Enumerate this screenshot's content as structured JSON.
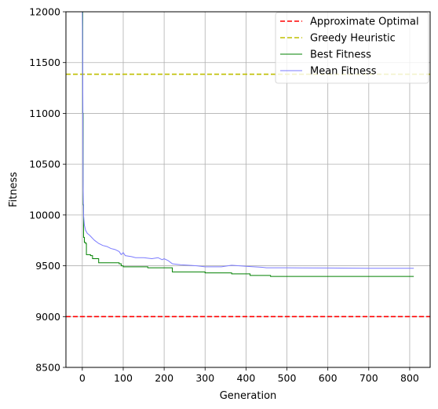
{
  "chart_data": {
    "type": "line",
    "title": "",
    "xlabel": "Generation",
    "ylabel": "Fitness",
    "xlim": [
      -40,
      850
    ],
    "ylim": [
      8500,
      12000
    ],
    "xticks": [
      0,
      100,
      200,
      300,
      400,
      500,
      600,
      700,
      800
    ],
    "yticks": [
      8500,
      9000,
      9500,
      10000,
      10500,
      11000,
      11500,
      12000
    ],
    "grid": true,
    "legend_position": "top-right",
    "series": [
      {
        "name": "Approximate Optimal",
        "kind": "hline",
        "y": 9000,
        "color": "#ff0000",
        "dash": true
      },
      {
        "name": "Greedy Heuristic",
        "kind": "hline",
        "y": 11385,
        "color": "#bfbf00",
        "dash": true
      },
      {
        "name": "Best Fitness",
        "kind": "step",
        "color": "#008000",
        "points": [
          [
            0,
            12000
          ],
          [
            1,
            11000
          ],
          [
            2,
            10100
          ],
          [
            3,
            9780
          ],
          [
            5,
            9730
          ],
          [
            8,
            9720
          ],
          [
            10,
            9610
          ],
          [
            20,
            9600
          ],
          [
            25,
            9570
          ],
          [
            40,
            9530
          ],
          [
            90,
            9520
          ],
          [
            95,
            9500
          ],
          [
            100,
            9490
          ],
          [
            160,
            9480
          ],
          [
            220,
            9440
          ],
          [
            300,
            9430
          ],
          [
            365,
            9420
          ],
          [
            410,
            9405
          ],
          [
            460,
            9395
          ],
          [
            810,
            9395
          ]
        ]
      },
      {
        "name": "Mean Fitness",
        "kind": "line",
        "color": "#7b7bff",
        "points": [
          [
            0,
            12000
          ],
          [
            1,
            11500
          ],
          [
            2,
            10300
          ],
          [
            3,
            10000
          ],
          [
            5,
            9900
          ],
          [
            8,
            9850
          ],
          [
            12,
            9820
          ],
          [
            18,
            9800
          ],
          [
            25,
            9770
          ],
          [
            30,
            9750
          ],
          [
            40,
            9720
          ],
          [
            50,
            9700
          ],
          [
            60,
            9690
          ],
          [
            70,
            9670
          ],
          [
            80,
            9660
          ],
          [
            90,
            9640
          ],
          [
            95,
            9610
          ],
          [
            100,
            9630
          ],
          [
            105,
            9600
          ],
          [
            120,
            9590
          ],
          [
            130,
            9580
          ],
          [
            150,
            9580
          ],
          [
            170,
            9570
          ],
          [
            185,
            9580
          ],
          [
            195,
            9560
          ],
          [
            200,
            9570
          ],
          [
            210,
            9550
          ],
          [
            220,
            9520
          ],
          [
            240,
            9510
          ],
          [
            260,
            9505
          ],
          [
            280,
            9500
          ],
          [
            300,
            9490
          ],
          [
            340,
            9490
          ],
          [
            365,
            9505
          ],
          [
            400,
            9495
          ],
          [
            440,
            9485
          ],
          [
            450,
            9480
          ],
          [
            500,
            9480
          ],
          [
            600,
            9478
          ],
          [
            700,
            9475
          ],
          [
            810,
            9475
          ]
        ]
      }
    ]
  }
}
